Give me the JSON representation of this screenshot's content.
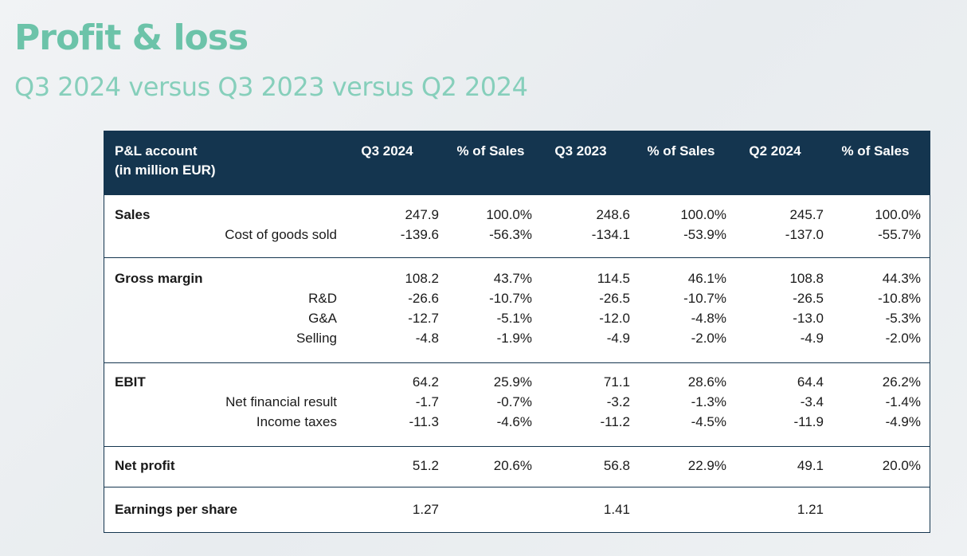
{
  "header": {
    "title": "Profit & loss",
    "subtitle": "Q3 2024 versus Q3 2023 versus Q2 2024"
  },
  "table": {
    "head": {
      "account_line1": "P&L account",
      "account_line2": "(in million EUR)",
      "columns": [
        "Q3 2024",
        "% of Sales",
        "Q3 2023",
        "% of Sales",
        "Q2 2024",
        "% of Sales"
      ]
    },
    "sections": [
      {
        "rows": [
          {
            "label": "Sales",
            "sub": "",
            "values": [
              "247.9",
              "100.0%",
              "248.6",
              "100.0%",
              "245.7",
              "100.0%"
            ]
          },
          {
            "label": "",
            "sub": "Cost of goods sold",
            "values": [
              "-139.6",
              "-56.3%",
              "-134.1",
              "-53.9%",
              "-137.0",
              "-55.7%"
            ]
          }
        ]
      },
      {
        "rows": [
          {
            "label": "Gross margin",
            "sub": "",
            "values": [
              "108.2",
              "43.7%",
              "114.5",
              "46.1%",
              "108.8",
              "44.3%"
            ]
          },
          {
            "label": "",
            "sub": "R&D",
            "values": [
              "-26.6",
              "-10.7%",
              "-26.5",
              "-10.7%",
              "-26.5",
              "-10.8%"
            ]
          },
          {
            "label": "",
            "sub": "G&A",
            "values": [
              "-12.7",
              "-5.1%",
              "-12.0",
              "-4.8%",
              "-13.0",
              "-5.3%"
            ]
          },
          {
            "label": "",
            "sub": "Selling",
            "values": [
              "-4.8",
              "-1.9%",
              "-4.9",
              "-2.0%",
              "-4.9",
              "-2.0%"
            ]
          }
        ]
      },
      {
        "rows": [
          {
            "label": "EBIT",
            "sub": "",
            "values": [
              "64.2",
              "25.9%",
              "71.1",
              "28.6%",
              "64.4",
              "26.2%"
            ]
          },
          {
            "label": "",
            "sub": "Net financial result",
            "values": [
              "-1.7",
              "-0.7%",
              "-3.2",
              "-1.3%",
              "-3.4",
              "-1.4%"
            ]
          },
          {
            "label": "",
            "sub": "Income taxes",
            "values": [
              "-11.3",
              "-4.6%",
              "-11.2",
              "-4.5%",
              "-11.9",
              "-4.9%"
            ]
          }
        ]
      },
      {
        "rows": [
          {
            "label": "Net profit",
            "sub": "",
            "values": [
              "51.2",
              "20.6%",
              "56.8",
              "22.9%",
              "49.1",
              "20.0%"
            ]
          }
        ]
      },
      {
        "rows": [
          {
            "label": "Earnings per share",
            "sub": "",
            "values": [
              "1.27",
              "",
              "1.41",
              "",
              "1.21",
              ""
            ]
          }
        ]
      }
    ]
  }
}
